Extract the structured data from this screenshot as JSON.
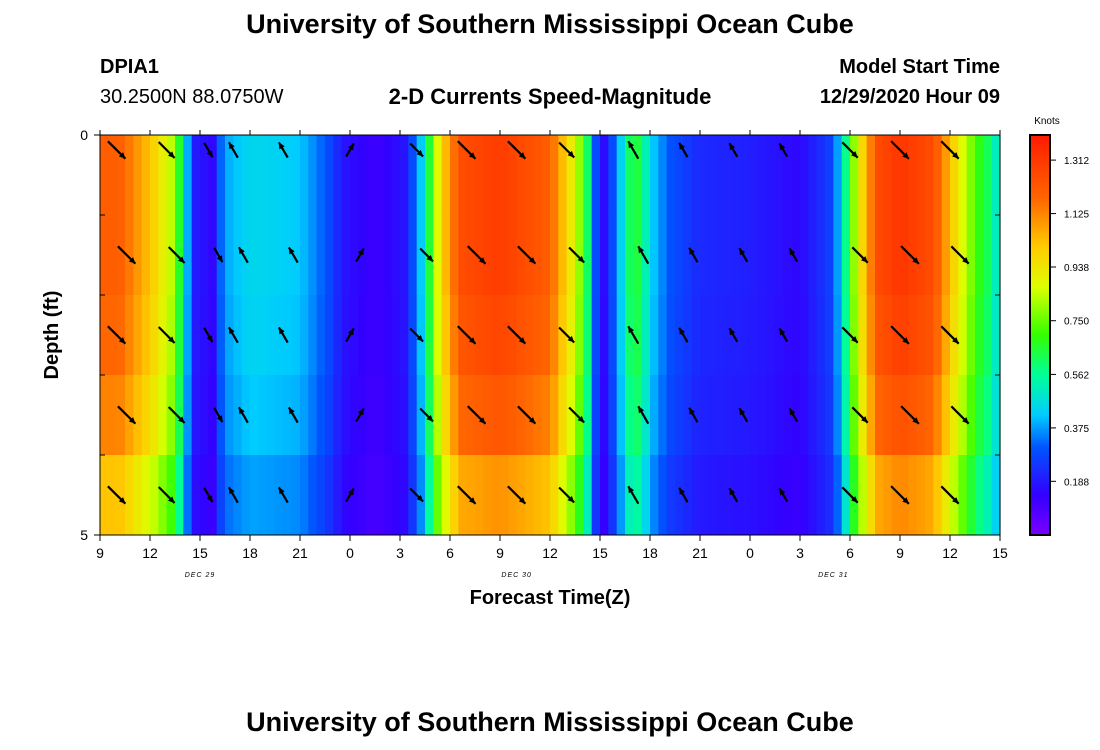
{
  "header": {
    "title": "University of Southern Mississippi Ocean Cube",
    "station_id": "DPIA1",
    "coordinates": "30.2500N 88.0750W",
    "subtitle": "2-D Currents Speed-Magnitude",
    "model_start_label": "Model Start Time",
    "model_start_value": "12/29/2020 Hour 09"
  },
  "footer": {
    "title": "University of Southern Mississippi Ocean Cube"
  },
  "chart_data": {
    "type": "heatmap",
    "title": "2-D Currents Speed-Magnitude",
    "xlabel": "Forecast Time(Z)",
    "ylabel": "Depth (ft)",
    "x_start_hour": 9,
    "x_end_hour": 63,
    "x_tick_labels": [
      "9",
      "12",
      "15",
      "18",
      "21",
      "0",
      "3",
      "6",
      "9",
      "12",
      "15",
      "18",
      "21",
      "0",
      "3",
      "6",
      "9",
      "12",
      "15"
    ],
    "date_labels": [
      {
        "label": "DEC 29",
        "hour": 15
      },
      {
        "label": "DEC 30",
        "hour": 34
      },
      {
        "label": "DEC 31",
        "hour": 53
      }
    ],
    "ylim": [
      0,
      5
    ],
    "y_tick_labels": [
      "0",
      "5"
    ],
    "depth_layers": 5,
    "colorbar": {
      "unit": "Knots",
      "min": 0.0,
      "max": 1.4,
      "ticks": [
        "1.312",
        "1.125",
        "0.938",
        "0.750",
        "0.562",
        "0.375",
        "0.188"
      ],
      "tick_values": [
        1.312,
        1.125,
        0.938,
        0.75,
        0.562,
        0.375,
        0.188
      ]
    },
    "speed_profile_knots": [
      [
        10.2,
        1.2
      ],
      [
        12.2,
        1.0
      ],
      [
        13.5,
        0.8
      ],
      [
        14.6,
        0.2
      ],
      [
        15.8,
        0.15
      ],
      [
        16.4,
        0.38
      ],
      [
        18,
        0.45
      ],
      [
        21,
        0.42
      ],
      [
        22.6,
        0.3
      ],
      [
        23.6,
        0.18
      ],
      [
        25.5,
        0.12
      ],
      [
        27.3,
        0.18
      ],
      [
        28.2,
        0.4
      ],
      [
        29.4,
        0.95
      ],
      [
        30.6,
        1.25
      ],
      [
        33,
        1.3
      ],
      [
        36,
        1.2
      ],
      [
        37.6,
        0.85
      ],
      [
        38.4,
        0.55
      ],
      [
        39,
        0.1
      ],
      [
        40,
        0.35
      ],
      [
        41,
        0.7
      ],
      [
        42.2,
        0.42
      ],
      [
        43.2,
        0.3
      ],
      [
        45,
        0.22
      ],
      [
        48,
        0.2
      ],
      [
        51,
        0.15
      ],
      [
        53,
        0.28
      ],
      [
        53.7,
        0.55
      ],
      [
        54.5,
        0.9
      ],
      [
        55.6,
        1.25
      ],
      [
        57,
        1.32
      ],
      [
        59,
        1.25
      ],
      [
        60.4,
        0.95
      ],
      [
        61.6,
        0.7
      ],
      [
        62.4,
        0.6
      ],
      [
        63,
        0.45
      ]
    ],
    "depth_scale": [
      1.0,
      1.0,
      0.98,
      0.94,
      0.85
    ],
    "current_arrows": [
      {
        "hour": 10,
        "depth": 0.1,
        "dir": 135,
        "speed": 1.25
      },
      {
        "hour": 13,
        "depth": 0.1,
        "dir": 135,
        "speed": 1.0
      },
      {
        "hour": 15.5,
        "depth": 0.1,
        "dir": 150,
        "speed": 0.3
      },
      {
        "hour": 17,
        "depth": 0.8,
        "dir": 330,
        "speed": 0.45
      },
      {
        "hour": 20,
        "depth": 0.8,
        "dir": 330,
        "speed": 0.42
      },
      {
        "hour": 24,
        "depth": 0.8,
        "dir": 30,
        "speed": 0.15
      },
      {
        "hour": 28,
        "depth": 0.1,
        "dir": 135,
        "speed": 0.5
      },
      {
        "hour": 31,
        "depth": 0.1,
        "dir": 135,
        "speed": 1.28
      },
      {
        "hour": 34,
        "depth": 0.1,
        "dir": 135,
        "speed": 1.25
      },
      {
        "hour": 37,
        "depth": 0.1,
        "dir": 135,
        "speed": 0.85
      },
      {
        "hour": 41,
        "depth": 0.8,
        "dir": 330,
        "speed": 0.7
      },
      {
        "hour": 44,
        "depth": 0.8,
        "dir": 330,
        "speed": 0.3
      },
      {
        "hour": 47,
        "depth": 0.8,
        "dir": 330,
        "speed": 0.2
      },
      {
        "hour": 50,
        "depth": 0.8,
        "dir": 330,
        "speed": 0.15
      },
      {
        "hour": 54,
        "depth": 0.1,
        "dir": 135,
        "speed": 0.9
      },
      {
        "hour": 57,
        "depth": 0.1,
        "dir": 135,
        "speed": 1.32
      },
      {
        "hour": 60,
        "depth": 0.1,
        "dir": 135,
        "speed": 1.25
      }
    ]
  }
}
